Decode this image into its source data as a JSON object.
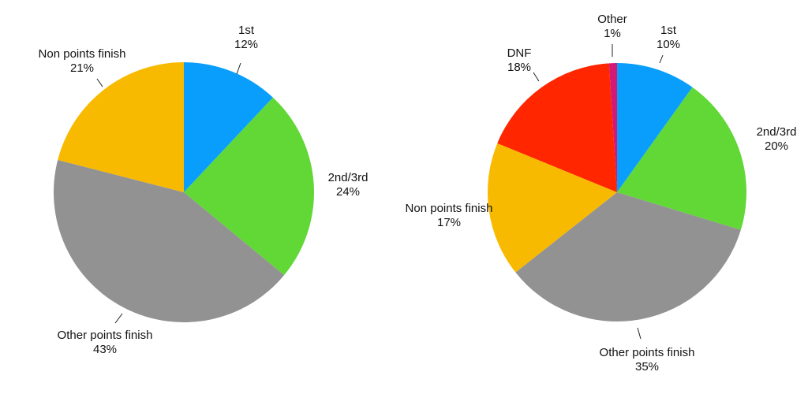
{
  "chart_data": [
    {
      "type": "pie",
      "title": "",
      "slices": [
        {
          "label": "1st",
          "value": 12,
          "percent_label": "12%",
          "color": "#0a9efc"
        },
        {
          "label": "2nd/3rd",
          "value": 24,
          "percent_label": "24%",
          "color": "#61d836"
        },
        {
          "label": "Other points finish",
          "value": 43,
          "percent_label": "43%",
          "color": "#929292"
        },
        {
          "label": "Non points finish",
          "value": 21,
          "percent_label": "21%",
          "color": "#f8ba00"
        }
      ]
    },
    {
      "type": "pie",
      "title": "",
      "slices": [
        {
          "label": "1st",
          "value": 10,
          "percent_label": "10%",
          "color": "#0a9efc"
        },
        {
          "label": "2nd/3rd",
          "value": 20,
          "percent_label": "20%",
          "color": "#61d836"
        },
        {
          "label": "Other points finish",
          "value": 35,
          "percent_label": "35%",
          "color": "#929292"
        },
        {
          "label": "Non points finish",
          "value": 17,
          "percent_label": "17%",
          "color": "#f8ba00"
        },
        {
          "label": "DNF",
          "value": 18,
          "percent_label": "18%",
          "color": "#ff2600"
        },
        {
          "label": "Other",
          "value": 1,
          "percent_label": "1%",
          "color": "#d31876"
        }
      ]
    }
  ]
}
